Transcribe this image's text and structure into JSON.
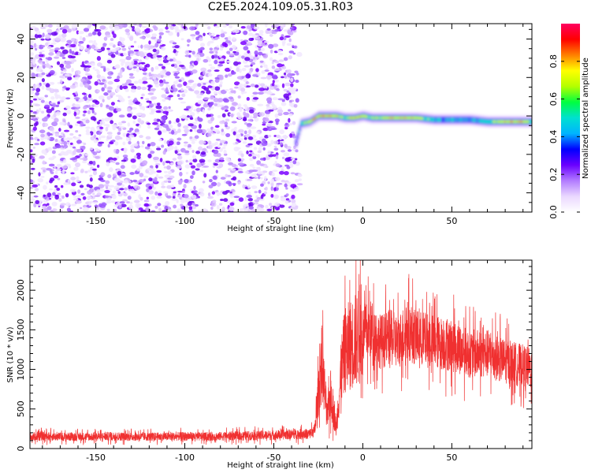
{
  "title": "C2E5.2024.109.05.31.R03",
  "colors": {
    "snr_line": "#f03030",
    "noise_scatter": "#7a00ff",
    "colormap": [
      "#ffffff",
      "#ead8ff",
      "#b27bff",
      "#6a00ff",
      "#0000ff",
      "#00b4ff",
      "#00e0d0",
      "#00ff40",
      "#b4ff00",
      "#ffff00",
      "#ff8000",
      "#ff0000",
      "#ff0060"
    ]
  },
  "chart_data": [
    {
      "type": "heatmap",
      "name": "spectrogram",
      "xlabel": "Height of straight line (km)",
      "ylabel": "Frequency (Hz)",
      "xlim": [
        -187,
        95
      ],
      "ylim": [
        -50,
        48
      ],
      "xticks": [
        -150,
        -100,
        -50,
        0,
        50
      ],
      "yticks": [
        -40,
        -20,
        0,
        20,
        40
      ],
      "noise_region_x": [
        -187,
        -36
      ],
      "signal_track": {
        "x": [
          -38,
          -35,
          -30,
          -25,
          -20,
          -15,
          -10,
          -5,
          0,
          5,
          10,
          20,
          30,
          40,
          50,
          60,
          70,
          80,
          90,
          95
        ],
        "frequency_hz": [
          -14,
          -4,
          -3,
          0,
          0,
          0,
          -1,
          -1,
          0,
          -1,
          -1,
          -1,
          -1,
          -2,
          -2,
          -2,
          -3,
          -3,
          -3,
          -3
        ],
        "amplitude": [
          0.35,
          0.55,
          0.8,
          0.9,
          0.95,
          0.85,
          0.7,
          0.9,
          0.85,
          0.75,
          0.8,
          0.85,
          0.8,
          0.55,
          0.5,
          0.5,
          0.6,
          0.85,
          0.9,
          0.6
        ]
      },
      "colorbar": {
        "label": "Normalized spectral amplitude",
        "range": [
          0,
          1
        ],
        "ticks": [
          0.0,
          0.2,
          0.4,
          0.6,
          0.8
        ]
      }
    },
    {
      "type": "line",
      "name": "snr",
      "xlabel": "Height of straight line (km)",
      "ylabel": "SNR (10 * v/v)",
      "xlim": [
        -187,
        95
      ],
      "ylim": [
        0,
        2380
      ],
      "xticks": [
        -150,
        -100,
        -50,
        0,
        50
      ],
      "yticks": [
        0,
        500,
        1000,
        1500,
        2000
      ],
      "series": [
        {
          "x": [
            -187,
            -180,
            -170,
            -160,
            -150,
            -140,
            -130,
            -120,
            -110,
            -100,
            -90,
            -80,
            -70,
            -60,
            -50,
            -40,
            -30,
            -27,
            -25,
            -23,
            -20,
            -18,
            -15,
            -12,
            -10,
            -5,
            0,
            5,
            10,
            15,
            20,
            25,
            30,
            40,
            50,
            60,
            70,
            80,
            90,
            95
          ],
          "y": [
            150,
            155,
            150,
            150,
            150,
            155,
            150,
            150,
            150,
            155,
            150,
            155,
            160,
            165,
            170,
            180,
            185,
            230,
            700,
            1100,
            400,
            700,
            250,
            1000,
            1250,
            1350,
            1450,
            1500,
            1350,
            1400,
            1350,
            1500,
            1400,
            1350,
            1300,
            1200,
            1200,
            1100,
            1050,
            1000
          ]
        }
      ]
    }
  ]
}
